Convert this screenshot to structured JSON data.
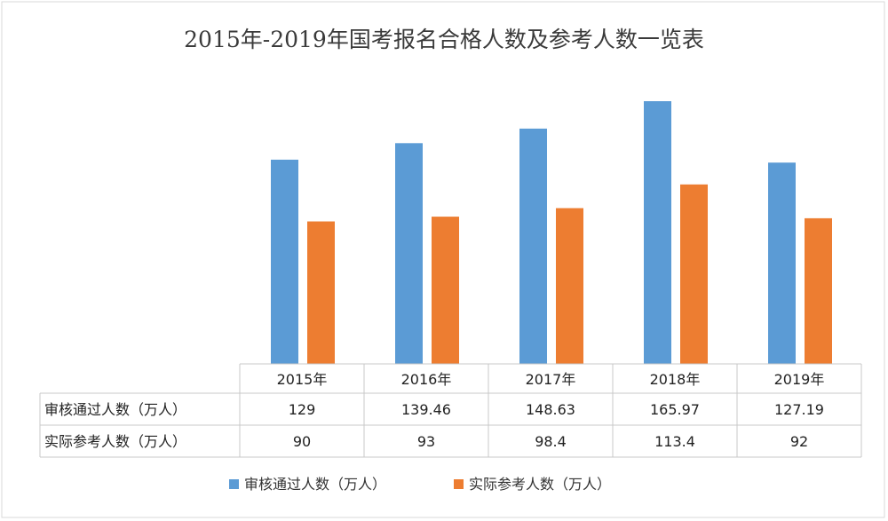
{
  "chart_data": {
    "type": "bar",
    "title": "2015年-2019年国考报名合格人数及参考人数一览表",
    "categories": [
      "2015年",
      "2016年",
      "2017年",
      "2018年",
      "2019年"
    ],
    "series": [
      {
        "name": "审核通过人数（万人）",
        "values": [
          129,
          139.46,
          148.63,
          165.97,
          127.19
        ],
        "labels": [
          "129",
          "139.46",
          "148.63",
          "165.97",
          "127.19"
        ],
        "color": "#5b9bd5"
      },
      {
        "name": "实际参考人数（万人）",
        "values": [
          90,
          93,
          98.4,
          113.4,
          92
        ],
        "labels": [
          "90",
          "93",
          "98.4",
          "113.4",
          "92"
        ],
        "color": "#ed7d31"
      }
    ],
    "ylim": [
      0,
      180
    ],
    "grid": false,
    "legend_position": "bottom",
    "data_table": true
  }
}
